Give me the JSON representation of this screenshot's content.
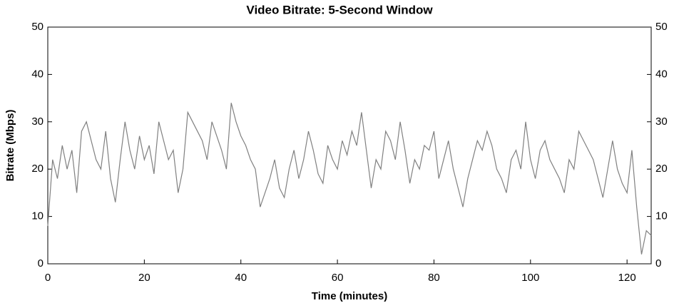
{
  "chart_data": {
    "type": "line",
    "title": "Video Bitrate: 5-Second Window",
    "x_label": "Time (minutes)",
    "y_label": "Bitrate (Mbps)",
    "xlim": [
      0,
      125
    ],
    "xticks": [
      0,
      20,
      40,
      60,
      80,
      100,
      120
    ],
    "ylim": [
      0,
      50
    ],
    "yticks": [
      0,
      10,
      20,
      30,
      40,
      50
    ],
    "x": [
      0,
      1,
      2,
      3,
      4,
      5,
      6,
      7,
      8,
      9,
      10,
      11,
      12,
      13,
      14,
      15,
      16,
      17,
      18,
      19,
      20,
      21,
      22,
      23,
      24,
      25,
      26,
      27,
      28,
      29,
      30,
      31,
      32,
      33,
      34,
      35,
      36,
      37,
      38,
      39,
      40,
      41,
      42,
      43,
      44,
      45,
      46,
      47,
      48,
      49,
      50,
      51,
      52,
      53,
      54,
      55,
      56,
      57,
      58,
      59,
      60,
      61,
      62,
      63,
      64,
      65,
      66,
      67,
      68,
      69,
      70,
      71,
      72,
      73,
      74,
      75,
      76,
      77,
      78,
      79,
      80,
      81,
      82,
      83,
      84,
      85,
      86,
      87,
      88,
      89,
      90,
      91,
      92,
      93,
      94,
      95,
      96,
      97,
      98,
      99,
      100,
      101,
      102,
      103,
      104,
      105,
      106,
      107,
      108,
      109,
      110,
      111,
      112,
      113,
      114,
      115,
      116,
      117,
      118,
      119,
      120,
      121,
      122,
      123,
      124,
      125
    ],
    "series": [
      {
        "color": "#808080",
        "values": [
          8,
          22,
          18,
          25,
          20,
          24,
          15,
          28,
          30,
          26,
          22,
          20,
          28,
          18,
          13,
          22,
          30,
          24,
          20,
          27,
          22,
          25,
          19,
          30,
          26,
          22,
          24,
          15,
          20,
          32,
          30,
          28,
          26,
          22,
          30,
          27,
          24,
          20,
          34,
          30,
          27,
          25,
          22,
          20,
          12,
          15,
          18,
          22,
          16,
          14,
          20,
          24,
          18,
          22,
          28,
          24,
          19,
          17,
          25,
          22,
          20,
          26,
          23,
          28,
          25,
          32,
          24,
          16,
          22,
          20,
          28,
          26,
          22,
          30,
          24,
          17,
          22,
          20,
          25,
          24,
          28,
          18,
          22,
          26,
          20,
          16,
          12,
          18,
          22,
          26,
          24,
          28,
          25,
          20,
          18,
          15,
          22,
          24,
          20,
          30,
          22,
          18,
          24,
          26,
          22,
          20,
          18,
          15,
          22,
          20,
          28,
          26,
          24,
          22,
          18,
          14,
          20,
          26,
          20,
          17,
          15,
          24,
          12,
          2,
          7,
          6
        ]
      }
    ]
  }
}
